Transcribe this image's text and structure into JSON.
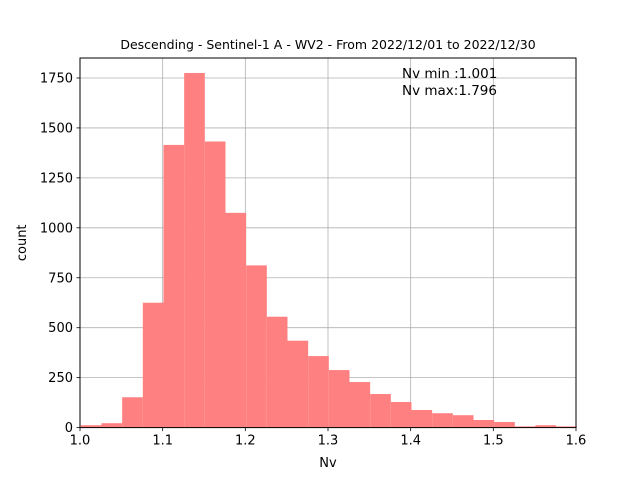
{
  "chart_data": {
    "type": "bar",
    "title": "Descending - Sentinel-1 A - WV2 - From 2022/12/01 to 2022/12/30",
    "xlabel": "Nv",
    "ylabel": "count",
    "xlim": [
      1.0,
      1.6
    ],
    "ylim": [
      0,
      1850
    ],
    "x_ticks": [
      "1.0",
      "1.1",
      "1.2",
      "1.3",
      "1.4",
      "1.5",
      "1.6"
    ],
    "x_tick_values": [
      1.0,
      1.1,
      1.2,
      1.3,
      1.4,
      1.5,
      1.6
    ],
    "y_ticks": [
      "0",
      "250",
      "500",
      "750",
      "1000",
      "1250",
      "1500",
      "1750"
    ],
    "y_tick_values": [
      0,
      250,
      500,
      750,
      1000,
      1250,
      1500,
      1750
    ],
    "grid": true,
    "bar_color": "#ff8080",
    "bin_start": 1.001,
    "bin_width": 0.025,
    "values": [
      12,
      22,
      152,
      625,
      1415,
      1775,
      1432,
      1075,
      812,
      555,
      435,
      358,
      288,
      228,
      168,
      128,
      88,
      72,
      62,
      38,
      28,
      6,
      12,
      6
    ],
    "annotations": [
      "Nv min :1.001",
      "Nv max:1.796"
    ]
  }
}
